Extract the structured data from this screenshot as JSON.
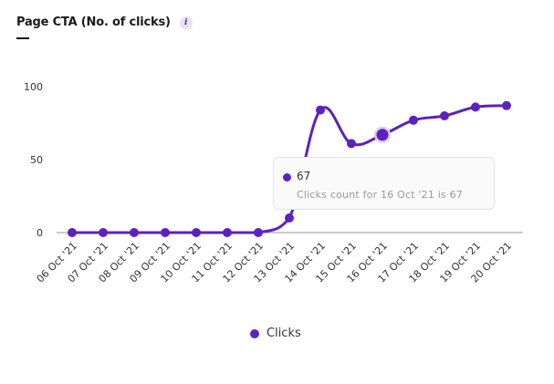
{
  "header": {
    "title": "Page CTA (No. of clicks)",
    "info_icon": "i"
  },
  "colors": {
    "series": "#5b22bf",
    "axis": "#999999",
    "tooltip_bg": "#fafafa"
  },
  "tooltip": {
    "value": "67",
    "description": "Clicks count for 16 Oct '21 is 67"
  },
  "legend": {
    "label": "Clicks"
  },
  "chart_data": {
    "type": "line",
    "title": "Page CTA (No. of clicks)",
    "xlabel": "",
    "ylabel": "",
    "categories": [
      "06 Oct '21",
      "07 Oct '21",
      "08 Oct '21",
      "09 Oct '21",
      "10 Oct '21",
      "11 Oct '21",
      "12 Oct '21",
      "13 Oct '21",
      "14 Oct '21",
      "15 Oct '21",
      "16 Oct '21",
      "17 Oct '21",
      "18 Oct '21",
      "19 Oct '21",
      "20 Oct '21"
    ],
    "series": [
      {
        "name": "Clicks",
        "values": [
          0,
          0,
          0,
          0,
          0,
          0,
          0,
          10,
          84,
          61,
          67,
          77,
          80,
          86,
          87
        ]
      }
    ],
    "yticks": [
      "0",
      "50",
      "100"
    ],
    "ylim": [
      0,
      100
    ],
    "grid": false,
    "legend_position": "bottom",
    "highlighted_point": {
      "category": "16 Oct '21",
      "value": 67
    }
  }
}
